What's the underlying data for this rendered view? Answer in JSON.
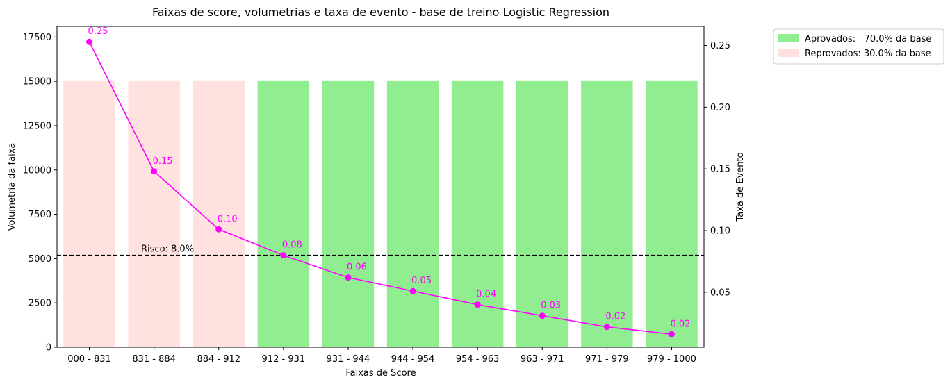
{
  "chart_data": {
    "type": "bar",
    "title": "Faixas de score, volumetrias e taxa de evento - base de treino Logistic Regression",
    "xlabel": "Faixas de Score",
    "ylabel": "Volumetria da faixa",
    "y2label": "Taxa de Evento",
    "categories": [
      "000 - 831",
      "831 - 884",
      "884 - 912",
      "912 - 931",
      "931 - 944",
      "944 - 954",
      "954 - 963",
      "963 - 971",
      "971 - 979",
      "979 - 1000"
    ],
    "bars": {
      "values": [
        15050,
        15050,
        15050,
        15050,
        15050,
        15050,
        15050,
        15050,
        15050,
        15050
      ],
      "groups": [
        "Reprovados",
        "Reprovados",
        "Reprovados",
        "Aprovados",
        "Aprovados",
        "Aprovados",
        "Aprovados",
        "Aprovados",
        "Aprovados",
        "Aprovados"
      ]
    },
    "line": {
      "values": [
        0.253,
        0.148,
        0.101,
        0.08,
        0.062,
        0.051,
        0.04,
        0.031,
        0.022,
        0.016
      ],
      "labels": [
        "0.25",
        "0.15",
        "0.10",
        "0.08",
        "0.06",
        "0.05",
        "0.04",
        "0.03",
        "0.02",
        "0.02"
      ],
      "color": "#ff00ff"
    },
    "ylim": [
      0,
      18100
    ],
    "y2lim": [
      0.0055,
      0.2655
    ],
    "yticks": [
      0,
      2500,
      5000,
      7500,
      10000,
      12500,
      15000,
      17500
    ],
    "y2ticks": [
      0.05,
      0.1,
      0.15,
      0.2,
      0.25
    ],
    "y2ticklabels": [
      "0.05",
      "0.10",
      "0.15",
      "0.20",
      "0.25"
    ],
    "reference": {
      "value": 0.08,
      "label": "Risco: 8.0%"
    },
    "legend": {
      "placement": "top-right-outside",
      "entries": [
        {
          "label": "Aprovados:   70.0% da base",
          "color": "#90ee90"
        },
        {
          "label": "Reprovados: 30.0% da base",
          "color": "#ffe1df"
        }
      ]
    },
    "colors": {
      "Aprovados": "#90ee90",
      "Reprovados": "#ffe1df"
    },
    "grid": false
  }
}
